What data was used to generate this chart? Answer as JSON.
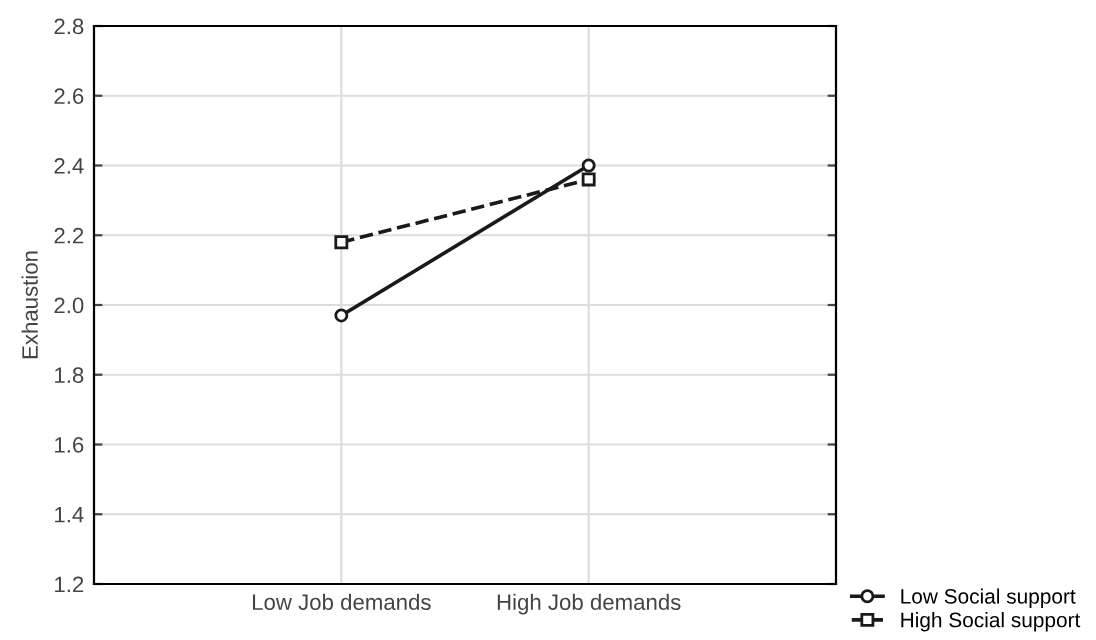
{
  "chart_data": {
    "type": "line",
    "ylabel": "Exhaustion",
    "categories": [
      "Low Job demands",
      "High Job demands"
    ],
    "series": [
      {
        "name": "Low Social support",
        "color": "#1a1a1a",
        "values": [
          1.97,
          2.4
        ],
        "marker": "circle",
        "line_style": "solid"
      },
      {
        "name": "High Social support",
        "color": "#1a1a1a",
        "values": [
          2.18,
          2.36
        ],
        "marker": "square",
        "line_style": "dashed"
      }
    ],
    "ylim": [
      1.2,
      2.8
    ],
    "yticks": [
      1.2,
      1.4,
      1.6,
      1.8,
      {
        "value": 2.0,
        "label": "2.0"
      },
      2.2,
      2.4,
      2.6,
      2.8
    ],
    "grid": true,
    "legend": "bottom right"
  }
}
